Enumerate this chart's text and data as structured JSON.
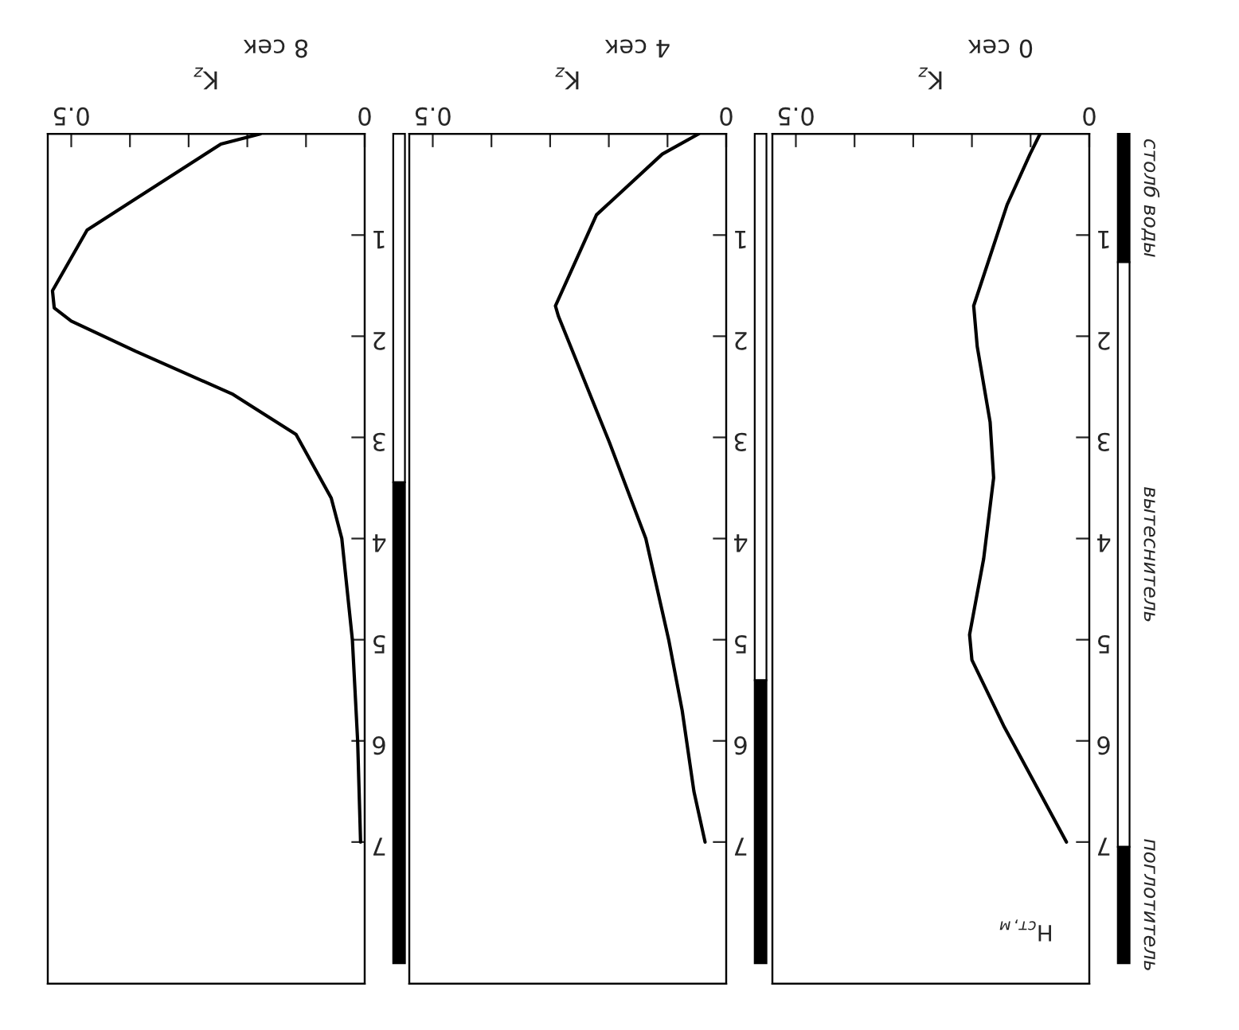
{
  "chart_data": [
    {
      "type": "line",
      "title": "8 сек",
      "xlabel": "K$_{z}$",
      "xlim": [
        0.54,
        0
      ],
      "y2lim": [
        8.4,
        0
      ],
      "xticks": [
        {
          "value": 0.5,
          "label": "0.5"
        },
        {
          "value": 0.4,
          "label": null
        },
        {
          "value": 0.3,
          "label": null
        },
        {
          "value": 0.2,
          "label": null
        },
        {
          "value": 0.1,
          "label": null
        },
        {
          "value": 0,
          "label": "0"
        }
      ],
      "y2ticks": [
        1,
        2,
        3,
        4,
        5,
        6,
        7
      ],
      "grid": false,
      "legend": false,
      "marker": "none",
      "line_style": "solid",
      "series": [
        {
          "color": "#000000",
          "axis": "y2",
          "x": [
            0.178,
            0.245,
            0.473,
            0.532,
            0.529,
            0.5,
            0.39,
            0.226,
            0.117,
            0.057,
            0.039,
            0.021,
            0.012,
            0.007
          ],
          "values": [
            0,
            0.1,
            0.95,
            1.55,
            1.72,
            1.85,
            2.15,
            2.57,
            2.97,
            3.6,
            4,
            5,
            6,
            7
          ]
        }
      ]
    },
    {
      "type": "line",
      "title": "4 сек",
      "xlabel": "K$_{z}$",
      "xlim": [
        0.54,
        0
      ],
      "y2lim": [
        8.4,
        0
      ],
      "xticks": [
        {
          "value": 0.5,
          "label": "0.5"
        },
        {
          "value": 0.4,
          "label": null
        },
        {
          "value": 0.3,
          "label": null
        },
        {
          "value": 0.2,
          "label": null
        },
        {
          "value": 0.1,
          "label": null
        },
        {
          "value": 0,
          "label": "0"
        }
      ],
      "y2ticks": [
        1,
        2,
        3,
        4,
        5,
        6,
        7
      ],
      "grid": false,
      "legend": false,
      "marker": "none",
      "line_style": "solid",
      "series": [
        {
          "color": "#000000",
          "axis": "y2",
          "x": [
            0.047,
            0.109,
            0.221,
            0.291,
            0.286,
            0.199,
            0.137,
            0.098,
            0.075,
            0.055,
            0.036
          ],
          "values": [
            0,
            0.2,
            0.8,
            1.7,
            1.8,
            3.05,
            4,
            5,
            5.7,
            6.5,
            7
          ]
        }
      ]
    },
    {
      "type": "line",
      "title": "0 сек",
      "xlabel": "K$_{z}$",
      "y2label": "H$_{ст,м}$",
      "xlim": [
        0.54,
        0
      ],
      "y2lim": [
        8.4,
        0
      ],
      "xticks": [
        {
          "value": 0.5,
          "label": "0.5"
        },
        {
          "value": 0.4,
          "label": null
        },
        {
          "value": 0.3,
          "label": null
        },
        {
          "value": 0.2,
          "label": null
        },
        {
          "value": 0.1,
          "label": null
        },
        {
          "value": 0,
          "label": "0"
        }
      ],
      "y2ticks": [
        1,
        2,
        3,
        4,
        5,
        6,
        7
      ],
      "grid": false,
      "legend": false,
      "marker": "none",
      "line_style": "solid",
      "annotations": [
        "столб воды",
        "вытеснитель",
        "поглотитель"
      ],
      "series": [
        {
          "color": "#000000",
          "axis": "y2",
          "x": [
            0.084,
            0.101,
            0.14,
            0.197,
            0.191,
            0.169,
            0.163,
            0.18,
            0.204,
            0.2,
            0.146,
            0.09,
            0.039
          ],
          "values": [
            0,
            0.2,
            0.7,
            1.7,
            2.1,
            2.85,
            3.4,
            4.2,
            4.95,
            5.2,
            5.85,
            6.45,
            7
          ]
        }
      ]
    }
  ]
}
